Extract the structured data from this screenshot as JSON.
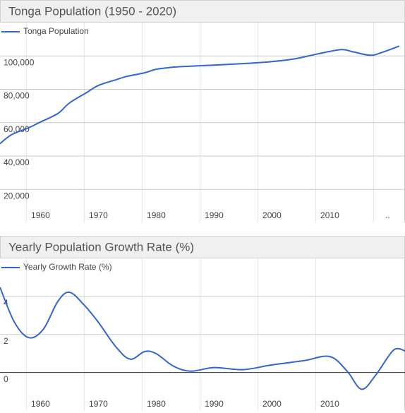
{
  "chart_data": [
    {
      "type": "line",
      "title": "Tonga Population (1950 - 2020)",
      "x": [
        1953,
        1955,
        1958,
        1960,
        1963,
        1965,
        1968,
        1970,
        1973,
        1975,
        1978,
        1980,
        1983,
        1985,
        1990,
        1995,
        2000,
        2004,
        2008,
        2012,
        2014,
        2017,
        2019,
        2022
      ],
      "series": [
        {
          "name": "Tonga Population",
          "color": "#3366cc",
          "values": [
            47400,
            52800,
            57000,
            60400,
            65500,
            71800,
            78100,
            82300,
            85700,
            87800,
            89900,
            92000,
            93300,
            93700,
            94500,
            95400,
            96600,
            98300,
            101300,
            103800,
            102500,
            100400,
            102100,
            105900
          ]
        }
      ],
      "xlim": [
        1953,
        2023
      ],
      "xticks": [
        1960,
        1970,
        1980,
        1990,
        2000,
        2010,
        {
          "value": 2020,
          "label": ".."
        }
      ],
      "ylim": [
        0,
        120000
      ],
      "yticks": [
        {
          "value": 20000,
          "label": "20,000"
        },
        {
          "value": 40000,
          "label": "40,000"
        },
        {
          "value": 60000,
          "label": "60,000"
        },
        {
          "value": 80000,
          "label": "80,000"
        },
        {
          "value": 100000,
          "label": "100,000"
        }
      ],
      "grid": true
    },
    {
      "type": "line",
      "title": "Yearly Population Growth Rate (%)",
      "x": [
        1953,
        1955.5,
        1958,
        1960.5,
        1963,
        1965,
        1967.5,
        1970,
        1973,
        1975.5,
        1978,
        1980,
        1983,
        1986,
        1990,
        1995,
        2000,
        2005.5,
        2010,
        2013,
        2015.5,
        2018,
        2021,
        2023
      ],
      "series": [
        {
          "name": "Yearly Growth Rate (%)",
          "color": "#3366cc",
          "values": [
            4.48,
            2.64,
            1.83,
            2.28,
            3.74,
            4.22,
            3.56,
            2.64,
            1.36,
            0.7,
            1.1,
            0.99,
            0.33,
            0.07,
            0.26,
            0.15,
            0.4,
            0.62,
            0.84,
            0.07,
            -0.88,
            -0.11,
            1.17,
            1.14
          ]
        }
      ],
      "xlim": [
        1953,
        2023
      ],
      "xticks": [
        1960,
        1970,
        1980,
        1990,
        2000,
        2010
      ],
      "ylim": [
        -2,
        6
      ],
      "yticks": [
        0,
        2,
        4
      ],
      "grid": true
    }
  ]
}
